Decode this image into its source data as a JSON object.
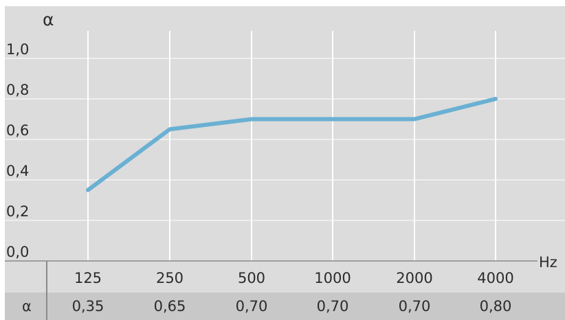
{
  "chart_data": {
    "type": "line",
    "ylabel": "α",
    "xlabel_unit": "Hz",
    "categories": [
      "125",
      "250",
      "500",
      "1000",
      "2000",
      "4000"
    ],
    "series": [
      {
        "values": [
          0.35,
          0.65,
          0.7,
          0.7,
          0.7,
          0.8
        ]
      }
    ],
    "y_ticks": [
      "0,0",
      "0,2",
      "0,4",
      "0,6",
      "0,8",
      "1,0"
    ],
    "ylim": [
      0,
      1.0
    ],
    "grid": true,
    "table_row": {
      "label": "α",
      "values": [
        "0,35",
        "0,65",
        "0,70",
        "0,70",
        "0,70",
        "0,80"
      ]
    }
  },
  "colors": {
    "plot_background": "#dcdcdc",
    "table_background": "#c8c8c8",
    "line": "#6ab0d3",
    "grid": "#ffffff",
    "axis": "#8a8a8a"
  }
}
